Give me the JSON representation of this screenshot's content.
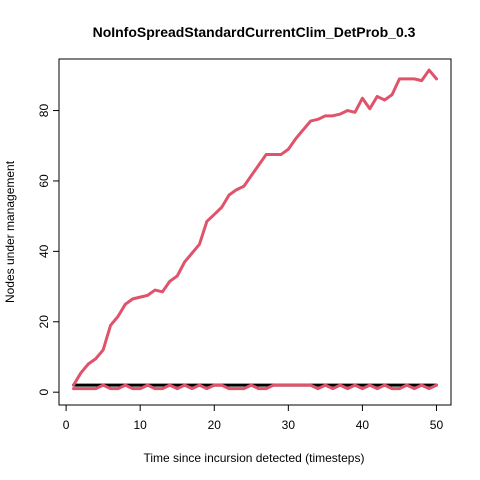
{
  "chart_data": {
    "type": "line",
    "title": "NoInfoSpreadStandardCurrentClim_DetProb_0.3",
    "xlabel": "Time since incursion detected (timesteps)",
    "ylabel": "Nodes under management",
    "xlim": [
      -0.96,
      51.96
    ],
    "ylim": [
      -3.64,
      94.64
    ],
    "xticks": [
      0,
      10,
      20,
      30,
      40,
      50
    ],
    "yticks": [
      0,
      20,
      40,
      60,
      80
    ],
    "grid": false,
    "series": [
      {
        "color": "#000000",
        "line_width": 3,
        "x": [
          1,
          2,
          3,
          4,
          5,
          6,
          7,
          8,
          9,
          10,
          11,
          12,
          13,
          14,
          15,
          16,
          17,
          18,
          19,
          20,
          21,
          22,
          23,
          24,
          25,
          26,
          27,
          28,
          29,
          30,
          31,
          32,
          33,
          34,
          35,
          36,
          37,
          38,
          39,
          40,
          41,
          42,
          43,
          44,
          45,
          46,
          47,
          48,
          49,
          50
        ],
        "y": [
          2,
          2,
          2,
          2,
          2,
          2,
          2,
          2,
          2,
          2,
          2,
          2,
          2,
          2,
          2,
          2,
          2,
          2,
          2,
          2,
          2,
          2,
          2,
          2,
          2,
          2,
          2,
          2,
          2,
          2,
          2,
          2,
          2,
          2,
          2,
          2,
          2,
          2,
          2,
          2,
          2,
          2,
          2,
          2,
          2,
          2,
          2,
          2,
          2,
          2
        ]
      },
      {
        "color": "#DF536B",
        "line_width": 3,
        "x": [
          1,
          2,
          3,
          4,
          5,
          6,
          7,
          8,
          9,
          10,
          11,
          12,
          13,
          14,
          15,
          16,
          17,
          18,
          19,
          20,
          21,
          22,
          23,
          24,
          25,
          26,
          27,
          28,
          29,
          30,
          31,
          32,
          33,
          34,
          35,
          36,
          37,
          38,
          39,
          40,
          41,
          42,
          43,
          44,
          45,
          46,
          47,
          48,
          49,
          50
        ],
        "y": [
          1,
          1,
          1,
          1,
          2,
          1,
          1,
          2,
          1,
          1,
          2,
          1,
          1,
          2,
          1,
          2,
          1,
          2,
          1,
          2,
          2,
          1,
          1,
          1,
          2,
          1,
          1,
          2,
          2,
          2,
          2,
          2,
          2,
          1,
          2,
          1,
          2,
          1,
          2,
          1,
          2,
          1,
          2,
          1,
          1,
          2,
          1,
          2,
          1,
          2
        ]
      },
      {
        "color": "#DF536B",
        "line_width": 3,
        "x": [
          1,
          2,
          3,
          4,
          5,
          6,
          7,
          8,
          9,
          10,
          11,
          12,
          13,
          14,
          15,
          16,
          17,
          18,
          19,
          20,
          21,
          22,
          23,
          24,
          25,
          26,
          27,
          28,
          29,
          30,
          31,
          32,
          33,
          34,
          35,
          36,
          37,
          38,
          39,
          40,
          41,
          42,
          43,
          44,
          45,
          46,
          47,
          48,
          49,
          50
        ],
        "y": [
          2,
          5.5,
          8,
          9.5,
          12,
          19,
          21.5,
          25,
          26.5,
          27,
          27.5,
          29,
          28.5,
          31.5,
          33,
          37,
          39.5,
          42,
          48.5,
          50.5,
          52.5,
          56,
          57.5,
          58.5,
          61.5,
          64.5,
          67.5,
          67.5,
          67.5,
          69,
          72,
          74.5,
          77,
          77.5,
          78.5,
          78.5,
          79,
          80,
          79.5,
          83.5,
          80.5,
          84,
          83,
          84.5,
          89,
          89,
          89,
          88.5,
          91.5,
          89
        ]
      }
    ]
  }
}
